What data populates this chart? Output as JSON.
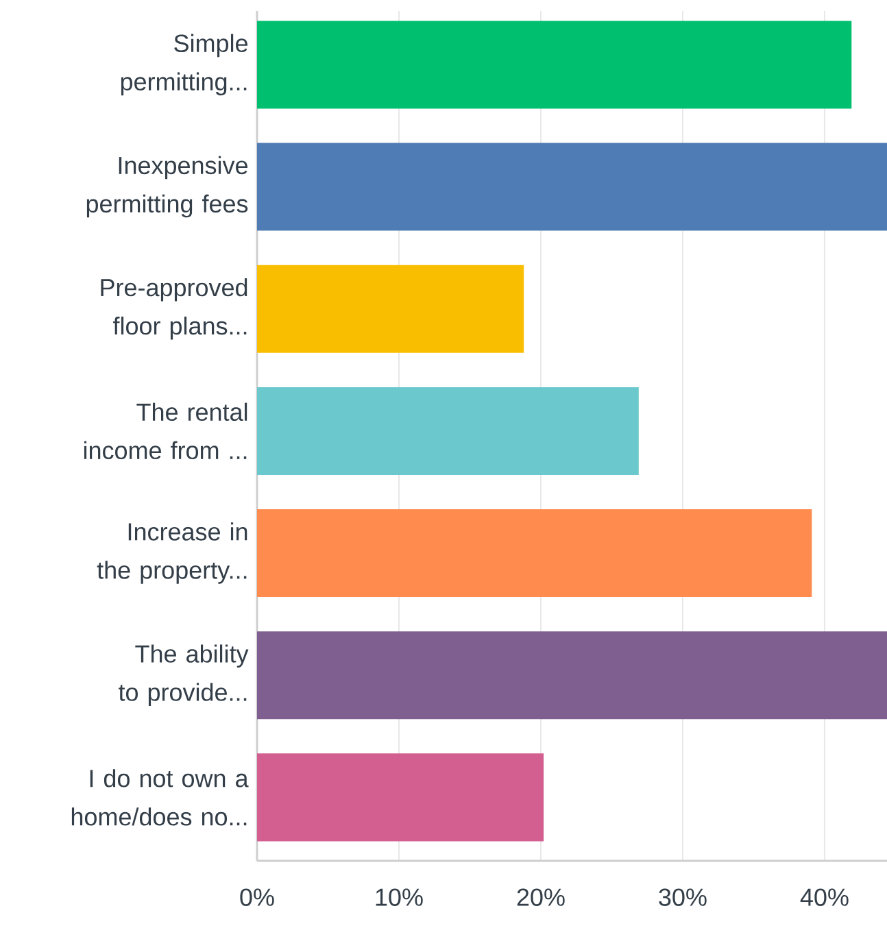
{
  "chart_data": {
    "type": "bar",
    "orientation": "horizontal",
    "categories": [
      "Simple permitting...",
      "Inexpensive permitting fees",
      "Pre-approved floor plans...",
      "The rental income from ...",
      "Increase in the property...",
      "The ability to provide...",
      "I do not own a home/does no..."
    ],
    "values": [
      41.9,
      44.4,
      18.8,
      26.9,
      39.1,
      44.4,
      20.2
    ],
    "colors": [
      "#00bf6f",
      "#507cb6",
      "#f9be00",
      "#6bc8cd",
      "#ff8b4f",
      "#7f5f90",
      "#d25f90"
    ],
    "xlim": [
      0,
      44.4
    ],
    "xticks": [
      {
        "value": 0,
        "label": "0%"
      },
      {
        "value": 10,
        "label": "10%"
      },
      {
        "value": 20,
        "label": "20%"
      },
      {
        "value": 30,
        "label": "30%"
      },
      {
        "value": 40,
        "label": "40%"
      }
    ],
    "grid": "x"
  }
}
